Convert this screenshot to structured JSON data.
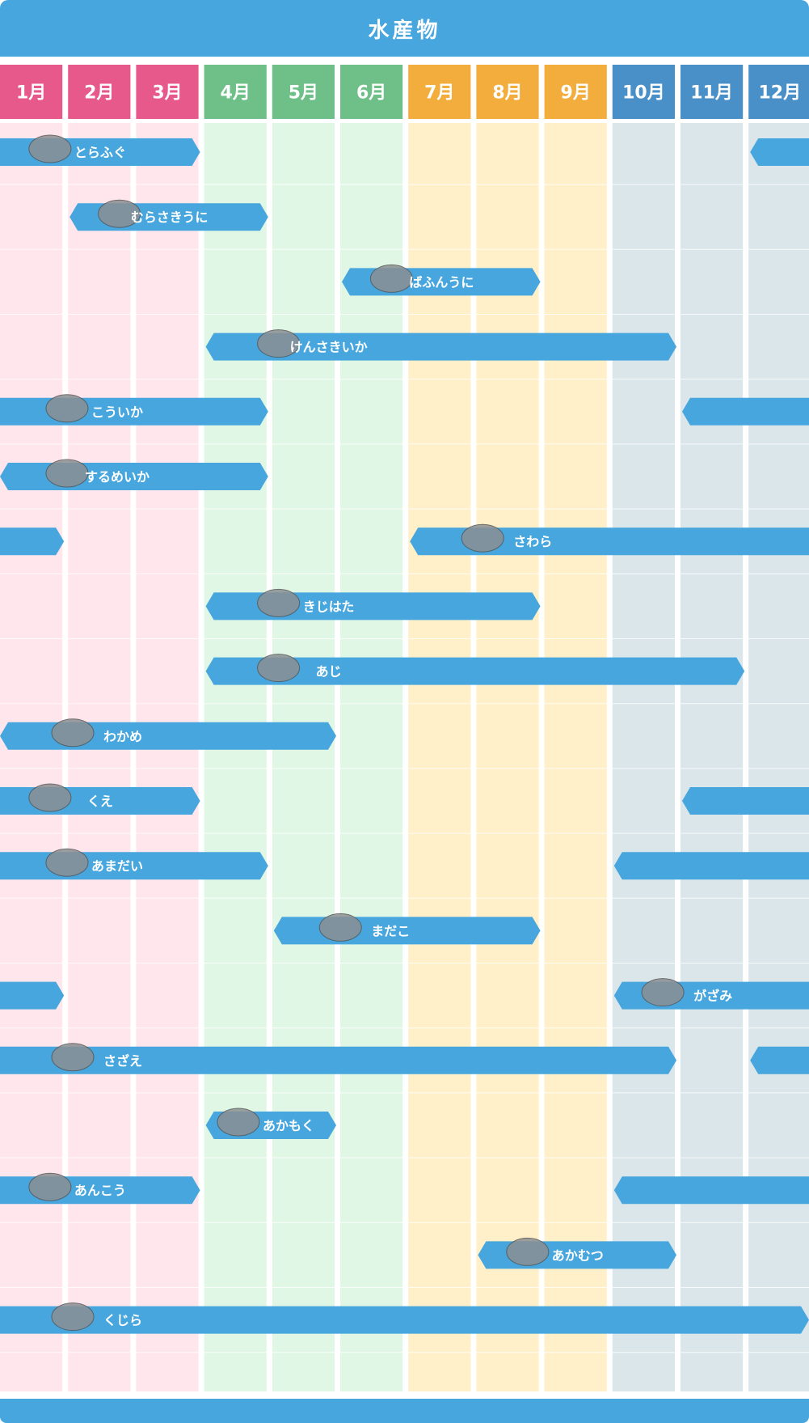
{
  "title": "水産物",
  "colors": {
    "header_bar": "#47a6dd",
    "bar": "#47a6dd",
    "winter_header": "#e7588b",
    "winter_bg": "#ffe6ec",
    "spring_header": "#6ec088",
    "spring_bg": "#e0f7e6",
    "summer_header": "#f3ad3d",
    "summer_bg": "#fff0c9",
    "autumn_header": "#4a90c8",
    "autumn_bg": "#dae6ea"
  },
  "chart_data": {
    "type": "gantt",
    "title": "水産物",
    "x_unit": "month",
    "months": [
      "1月",
      "2月",
      "3月",
      "4月",
      "5月",
      "6月",
      "7月",
      "8月",
      "9月",
      "10月",
      "11月",
      "12月"
    ],
    "month_season": [
      "winter",
      "winter",
      "winter",
      "spring",
      "spring",
      "spring",
      "summer",
      "summer",
      "summer",
      "autumn",
      "autumn",
      "autumn"
    ],
    "items": [
      {
        "name": "とらふぐ",
        "icon": "pufferfish-icon",
        "ranges": [
          [
            1,
            3
          ],
          [
            12,
            12
          ]
        ]
      },
      {
        "name": "むらさきうに",
        "icon": "sea-urchin-icon",
        "ranges": [
          [
            2,
            4
          ]
        ]
      },
      {
        "name": "ばふんうに",
        "icon": "sea-urchin-icon",
        "ranges": [
          [
            6,
            8
          ]
        ]
      },
      {
        "name": "けんさきいか",
        "icon": "squid-icon",
        "ranges": [
          [
            4,
            10
          ]
        ]
      },
      {
        "name": "こういか",
        "icon": "cuttlefish-icon",
        "ranges": [
          [
            1,
            4
          ],
          [
            11,
            12
          ]
        ]
      },
      {
        "name": "するめいか",
        "icon": "squid-icon",
        "ranges": [
          [
            1,
            4
          ]
        ]
      },
      {
        "name": "さわら",
        "icon": "mackerel-icon",
        "ranges": [
          [
            1,
            1
          ],
          [
            7,
            12
          ]
        ]
      },
      {
        "name": "きじはた",
        "icon": "grouper-icon",
        "ranges": [
          [
            4,
            8
          ]
        ]
      },
      {
        "name": "あじ",
        "icon": "horse-mackerel-icon",
        "ranges": [
          [
            4,
            11
          ]
        ]
      },
      {
        "name": "わかめ",
        "icon": "seaweed-icon",
        "ranges": [
          [
            1,
            5
          ]
        ]
      },
      {
        "name": "くえ",
        "icon": "grouper-icon",
        "ranges": [
          [
            1,
            3
          ],
          [
            11,
            12
          ]
        ]
      },
      {
        "name": "あまだい",
        "icon": "tilefish-icon",
        "ranges": [
          [
            1,
            4
          ],
          [
            10,
            12
          ]
        ]
      },
      {
        "name": "まだこ",
        "icon": "octopus-icon",
        "ranges": [
          [
            5,
            8
          ]
        ]
      },
      {
        "name": "がざみ",
        "icon": "crab-icon",
        "ranges": [
          [
            1,
            1
          ],
          [
            10,
            12
          ]
        ]
      },
      {
        "name": "さざえ",
        "icon": "turban-shell-icon",
        "ranges": [
          [
            1,
            10
          ],
          [
            12,
            12
          ]
        ]
      },
      {
        "name": "あかもく",
        "icon": "seaweed-icon",
        "ranges": [
          [
            4,
            5
          ]
        ]
      },
      {
        "name": "あんこう",
        "icon": "anglerfish-icon",
        "ranges": [
          [
            1,
            3
          ],
          [
            10,
            12
          ]
        ]
      },
      {
        "name": "あかむつ",
        "icon": "rockfish-icon",
        "ranges": [
          [
            8,
            10
          ]
        ]
      },
      {
        "name": "くじら",
        "icon": "whale-icon",
        "ranges": [
          [
            1,
            12
          ]
        ]
      }
    ]
  }
}
